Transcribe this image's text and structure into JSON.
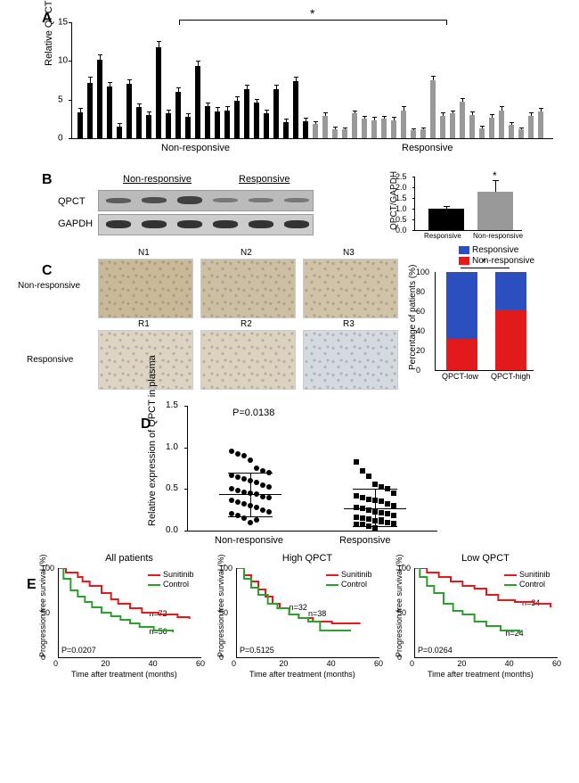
{
  "panelA": {
    "ylabel": "Relative QPCT mRNA expression",
    "ylim": [
      0,
      15
    ],
    "yticks": [
      0,
      5,
      10,
      15
    ],
    "groups": {
      "nonresponsive": {
        "label": "Non-responsive",
        "color": "#000000",
        "bars": [
          3.3,
          7.2,
          10.1,
          6.7,
          1.5,
          7.0,
          4.0,
          3.0,
          11.8,
          3.2,
          6.0,
          2.8,
          9.3,
          4.1,
          3.5,
          3.6,
          4.9,
          6.3,
          4.6,
          3.2,
          6.3,
          2.1,
          7.4,
          2.2
        ],
        "errors": [
          0.5,
          0.6,
          0.6,
          0.5,
          0.3,
          0.5,
          0.4,
          0.4,
          0.7,
          0.4,
          0.5,
          0.3,
          0.6,
          0.4,
          0.4,
          0.4,
          0.4,
          0.5,
          0.4,
          0.4,
          0.5,
          0.3,
          0.5,
          0.3
        ]
      },
      "responsive": {
        "label": "Responsive",
        "color": "#999999",
        "bars": [
          1.8,
          2.9,
          1.2,
          1.1,
          3.2,
          2.5,
          2.3,
          2.5,
          2.3,
          3.6,
          1.0,
          1.1,
          7.5,
          2.9,
          3.2,
          4.7,
          3.0,
          1.3,
          2.7,
          3.6,
          1.7,
          1.1,
          2.9,
          3.5
        ],
        "errors": [
          0.3,
          0.3,
          0.2,
          0.2,
          0.3,
          0.3,
          0.3,
          0.3,
          0.3,
          0.4,
          0.2,
          0.2,
          0.5,
          0.3,
          0.3,
          0.4,
          0.3,
          0.2,
          0.3,
          0.4,
          0.3,
          0.2,
          0.3,
          0.3
        ]
      }
    },
    "significance": "*"
  },
  "panelB": {
    "groups": [
      "Non-responsive",
      "Responsive"
    ],
    "rows": [
      "QPCT",
      "GAPDH"
    ],
    "chart": {
      "ylabel": "QPCT/GAPDH",
      "ylim": [
        0,
        2.5
      ],
      "yticks": [
        0.0,
        0.5,
        1.0,
        1.5,
        2.0,
        2.5
      ],
      "bars": [
        {
          "label": "Responsive",
          "value": 1.0,
          "error": 0.08,
          "color": "#000000"
        },
        {
          "label": "Non-responsive",
          "value": 1.8,
          "error": 0.5,
          "color": "#999999"
        }
      ],
      "significance": "*"
    }
  },
  "panelC": {
    "row_labels": [
      "Non-responsive",
      "Responsive"
    ],
    "col_labels": [
      [
        "N1",
        "N2",
        "N3"
      ],
      [
        "R1",
        "R2",
        "R3"
      ]
    ],
    "chart": {
      "ylabel": "Percentage of patients (%)",
      "ylim": [
        0,
        100
      ],
      "yticks": [
        0,
        20,
        40,
        60,
        80,
        100
      ],
      "categories": [
        "QPCT-low",
        "QPCT-high"
      ],
      "legend": [
        {
          "label": "Responsive",
          "color": "#2c4fbf"
        },
        {
          "label": "Non-responsive",
          "color": "#e31a1c"
        }
      ],
      "stacks": [
        {
          "responsive": 68,
          "nonresponsive": 32
        },
        {
          "responsive": 38,
          "nonresponsive": 62
        }
      ],
      "significance": "*"
    }
  },
  "panelD": {
    "ylabel": "Relative expression of QPCT in plasma",
    "pvalue": "P=0.0138",
    "ylim": [
      0,
      1.5
    ],
    "yticks": [
      0.0,
      0.5,
      1.0,
      1.5
    ],
    "groups": [
      {
        "label": "Non-responsive",
        "marker": "circle",
        "mean": 0.44,
        "sd_upper": 0.7,
        "sd_lower": 0.17,
        "points": [
          0.95,
          0.92,
          0.9,
          0.85,
          0.75,
          0.72,
          0.7,
          0.66,
          0.64,
          0.62,
          0.6,
          0.58,
          0.55,
          0.52,
          0.5,
          0.48,
          0.46,
          0.45,
          0.44,
          0.41,
          0.4,
          0.36,
          0.34,
          0.32,
          0.3,
          0.28,
          0.25,
          0.22,
          0.2,
          0.18,
          0.15,
          0.1,
          0.13
        ]
      },
      {
        "label": "Responsive",
        "marker": "square",
        "mean": 0.27,
        "sd_upper": 0.5,
        "sd_lower": 0.05,
        "points": [
          0.82,
          0.72,
          0.65,
          0.56,
          0.53,
          0.5,
          0.45,
          0.42,
          0.4,
          0.38,
          0.36,
          0.35,
          0.32,
          0.3,
          0.28,
          0.27,
          0.25,
          0.23,
          0.21,
          0.2,
          0.18,
          0.16,
          0.15,
          0.14,
          0.12,
          0.11,
          0.1,
          0.09,
          0.08,
          0.07,
          0.05,
          0.03,
          0.13
        ]
      }
    ]
  },
  "panelE": {
    "ylabel": "Progression free survival (%)",
    "xlabel": "Time after treatment (months)",
    "xlim": [
      0,
      60
    ],
    "xticks": [
      0,
      20,
      40,
      60
    ],
    "ylim": [
      0,
      100
    ],
    "yticks": [
      0,
      50,
      100
    ],
    "legend": [
      {
        "label": "Sunitinib",
        "color": "#e31a1c"
      },
      {
        "label": "Control",
        "color": "#2ca02c"
      }
    ],
    "plots": [
      {
        "title": "All patients",
        "pvalue": "P=0.0207",
        "series": [
          {
            "color": "#e31a1c",
            "n_label": "n=72",
            "n_pos": [
              38,
              48
            ],
            "points": [
              [
                0,
                100
              ],
              [
                3,
                95
              ],
              [
                8,
                90
              ],
              [
                10,
                85
              ],
              [
                13,
                80
              ],
              [
                18,
                72
              ],
              [
                22,
                65
              ],
              [
                25,
                60
              ],
              [
                30,
                55
              ],
              [
                35,
                50
              ],
              [
                42,
                48
              ],
              [
                50,
                45
              ],
              [
                55,
                43
              ]
            ]
          },
          {
            "color": "#2ca02c",
            "n_label": "n=56",
            "n_pos": [
              38,
              28
            ],
            "points": [
              [
                0,
                100
              ],
              [
                2,
                88
              ],
              [
                5,
                75
              ],
              [
                8,
                68
              ],
              [
                11,
                62
              ],
              [
                14,
                56
              ],
              [
                18,
                50
              ],
              [
                22,
                46
              ],
              [
                26,
                42
              ],
              [
                30,
                38
              ],
              [
                34,
                34
              ],
              [
                40,
                30
              ],
              [
                48,
                28
              ]
            ]
          }
        ]
      },
      {
        "title": "High QPCT",
        "pvalue": "P=0.5125",
        "series": [
          {
            "color": "#e31a1c",
            "n_label": "n=38",
            "n_pos": [
              30,
              48
            ],
            "points": [
              [
                0,
                100
              ],
              [
                3,
                92
              ],
              [
                6,
                85
              ],
              [
                9,
                76
              ],
              [
                12,
                68
              ],
              [
                15,
                60
              ],
              [
                18,
                55
              ],
              [
                22,
                48
              ],
              [
                26,
                44
              ],
              [
                32,
                40
              ],
              [
                40,
                38
              ],
              [
                52,
                38
              ]
            ]
          },
          {
            "color": "#2ca02c",
            "n_label": "n=32",
            "n_pos": [
              22,
              55
            ],
            "points": [
              [
                0,
                100
              ],
              [
                3,
                88
              ],
              [
                6,
                78
              ],
              [
                9,
                70
              ],
              [
                13,
                60
              ],
              [
                17,
                55
              ],
              [
                22,
                48
              ],
              [
                26,
                44
              ],
              [
                30,
                40
              ],
              [
                35,
                30
              ],
              [
                42,
                30
              ],
              [
                48,
                30
              ]
            ]
          }
        ]
      },
      {
        "title": "Low QPCT",
        "pvalue": "P=0.0264",
        "series": [
          {
            "color": "#e31a1c",
            "n_label": "n=34",
            "n_pos": [
              45,
              60
            ],
            "points": [
              [
                0,
                100
              ],
              [
                5,
                95
              ],
              [
                10,
                90
              ],
              [
                15,
                85
              ],
              [
                20,
                80
              ],
              [
                25,
                77
              ],
              [
                30,
                70
              ],
              [
                35,
                64
              ],
              [
                42,
                62
              ],
              [
                50,
                60
              ],
              [
                57,
                56
              ]
            ]
          },
          {
            "color": "#2ca02c",
            "n_label": "n=24",
            "n_pos": [
              38,
              26
            ],
            "points": [
              [
                0,
                100
              ],
              [
                2,
                90
              ],
              [
                5,
                80
              ],
              [
                8,
                72
              ],
              [
                12,
                60
              ],
              [
                16,
                52
              ],
              [
                20,
                48
              ],
              [
                25,
                40
              ],
              [
                30,
                35
              ],
              [
                36,
                30
              ],
              [
                44,
                26
              ]
            ]
          }
        ]
      }
    ]
  }
}
